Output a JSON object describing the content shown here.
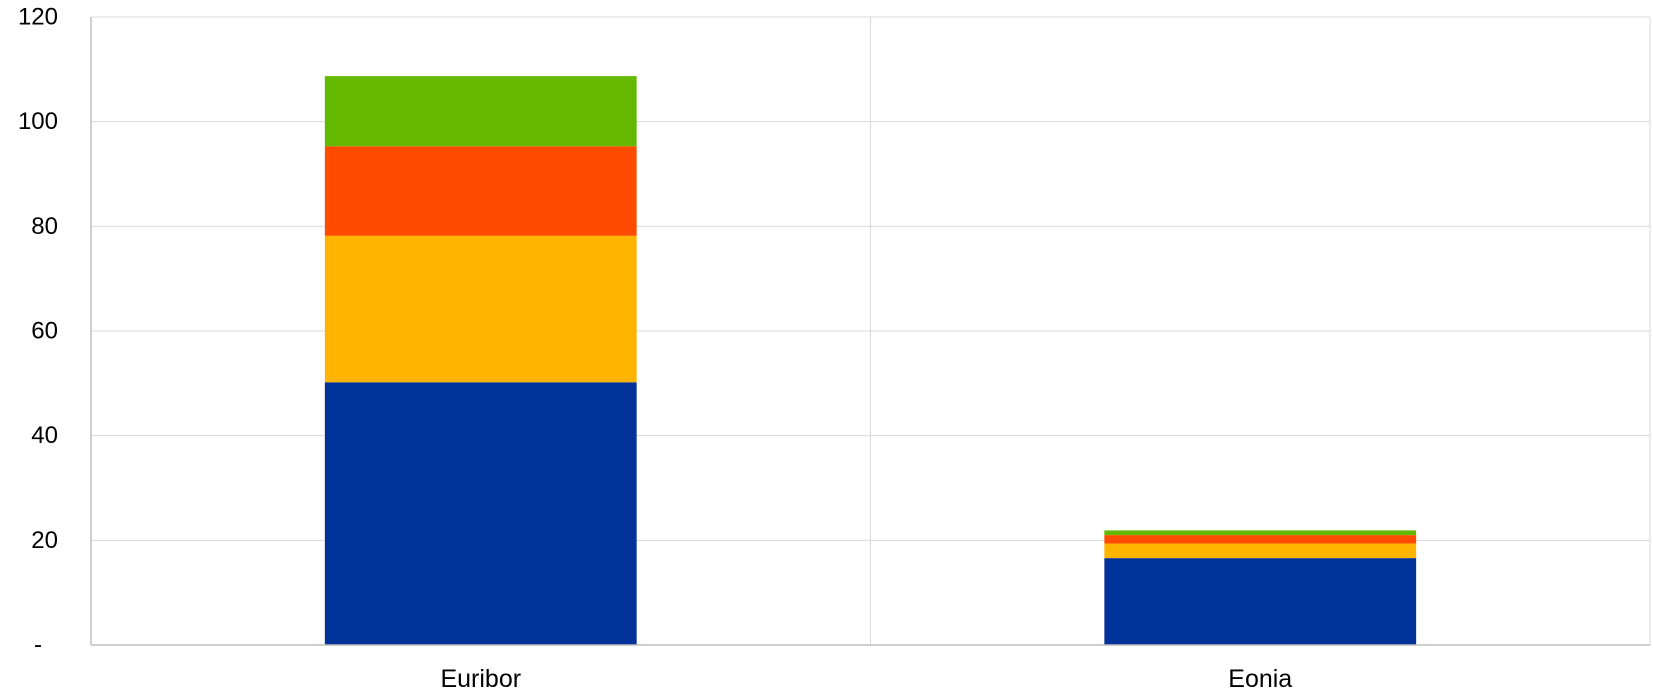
{
  "chart_data": {
    "type": "bar",
    "stacked": true,
    "categories": [
      "Euribor",
      "Eonia"
    ],
    "series": [
      {
        "values": [
          50.2,
          16.6
        ],
        "color": "#003299"
      },
      {
        "values": [
          28.0,
          2.8
        ],
        "color": "#FFB400"
      },
      {
        "values": [
          17.1,
          1.6
        ],
        "color": "#FF4B00"
      },
      {
        "values": [
          13.4,
          0.9
        ],
        "color": "#65B800"
      }
    ],
    "ylim": [
      0,
      120
    ],
    "yticks": [
      0,
      20,
      40,
      60,
      80,
      100,
      120
    ],
    "ytick_labels": [
      "-",
      "20",
      "40",
      "60",
      "80",
      "100",
      "120"
    ],
    "xlabel": "",
    "ylabel": "",
    "title": "",
    "grid": true,
    "legend": "none"
  }
}
